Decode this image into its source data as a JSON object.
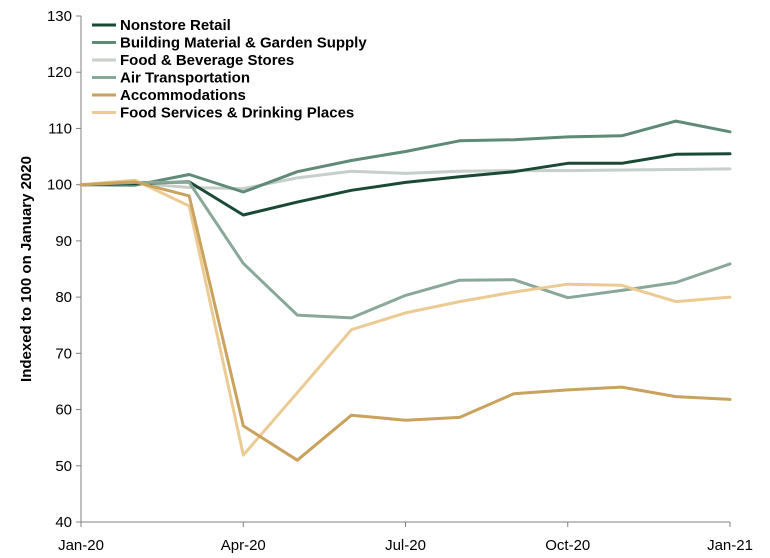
{
  "chart_data": {
    "type": "line",
    "title": "",
    "xlabel": "",
    "ylabel": "Indexed to 100 on January 2020",
    "ylim": [
      40,
      130
    ],
    "yticks": [
      40,
      50,
      60,
      70,
      80,
      90,
      100,
      110,
      120,
      130
    ],
    "x_ticks": [
      "Jan-20",
      "Apr-20",
      "Jul-20",
      "Oct-20",
      "Jan-21"
    ],
    "x": [
      "2020-01",
      "2020-02",
      "2020-03",
      "2020-04",
      "2020-05",
      "2020-06",
      "2020-07",
      "2020-08",
      "2020-09",
      "2020-10",
      "2020-11",
      "2020-12",
      "2021-01"
    ],
    "grid": false,
    "legend_position": "top-left",
    "series": [
      {
        "name": "Nonstore Retail",
        "color": "#1a4a36",
        "values": [
          100,
          100.2,
          100.5,
          94.6,
          96.9,
          99.0,
          100.4,
          101.4,
          102.3,
          103.8,
          103.8,
          105.4,
          105.5
        ]
      },
      {
        "name": "Building Material & Garden Supply",
        "color": "#5f8a76",
        "values": [
          100,
          99.9,
          101.8,
          98.7,
          102.3,
          104.3,
          105.9,
          107.8,
          108.0,
          108.5,
          108.7,
          111.3,
          109.4
        ]
      },
      {
        "name": "Food & Beverage Stores",
        "color": "#c6cfca",
        "values": [
          100,
          100.3,
          99.5,
          99.3,
          101.2,
          102.4,
          102.0,
          102.4,
          102.5,
          102.5,
          102.6,
          102.7,
          102.8
        ]
      },
      {
        "name": "Air Transportation",
        "color": "#8aa89a",
        "values": [
          100,
          100.4,
          100.4,
          86.0,
          76.8,
          76.3,
          80.3,
          83.0,
          83.1,
          79.9,
          81.2,
          82.6,
          85.9
        ]
      },
      {
        "name": "Accommodations",
        "color": "#c9a25e",
        "values": [
          100,
          100.5,
          98.0,
          57.1,
          51.0,
          59.0,
          58.1,
          58.6,
          62.8,
          63.5,
          64.0,
          62.3,
          61.8
        ]
      },
      {
        "name": "Food Services & Drinking Places",
        "color": "#ebcb93",
        "values": [
          100,
          100.8,
          96.2,
          51.9,
          63.0,
          74.2,
          77.2,
          79.2,
          80.9,
          82.3,
          82.1,
          79.2,
          80.0
        ]
      }
    ]
  }
}
